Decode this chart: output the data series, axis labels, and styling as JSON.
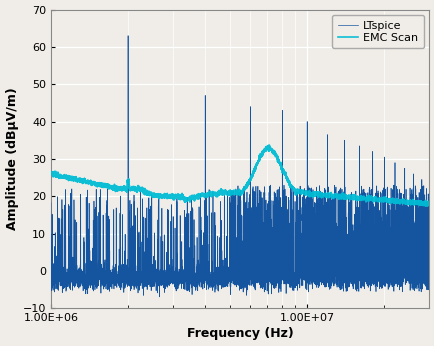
{
  "title": "",
  "xlabel": "Frequency (Hz)",
  "ylabel": "Amplitude (dBμV/m)",
  "xlim_log": [
    1000000.0,
    30000000.0
  ],
  "ylim": [
    -10,
    70
  ],
  "yticks": [
    -10,
    0,
    10,
    20,
    30,
    40,
    50,
    60,
    70
  ],
  "legend": [
    "LTspice",
    "EMC Scan"
  ],
  "ltspice_color": "#1555a0",
  "emc_color": "#00bcd4",
  "background_color": "#f0ede8",
  "grid_color": "#ffffff"
}
